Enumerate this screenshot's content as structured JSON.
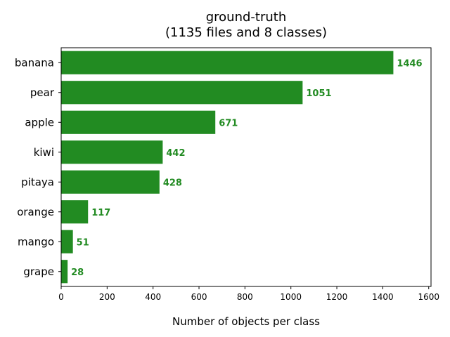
{
  "chart_data": {
    "type": "bar",
    "orientation": "horizontal",
    "title_line1": "ground-truth",
    "title_line2": "(1135 files and 8 classes)",
    "xlabel": "Number of objects per class",
    "ylabel": "",
    "categories": [
      "banana",
      "pear",
      "apple",
      "kiwi",
      "pitaya",
      "orange",
      "mango",
      "grape"
    ],
    "values": [
      1446,
      1051,
      671,
      442,
      428,
      117,
      51,
      28
    ],
    "value_labels": [
      "1446",
      "1051",
      "671",
      "442",
      "428",
      "117",
      "51",
      "28"
    ],
    "xlim": [
      0,
      1610
    ],
    "xticks": [
      0,
      200,
      400,
      600,
      800,
      1000,
      1200,
      1400,
      1600
    ],
    "xtick_labels": [
      "0",
      "200",
      "400",
      "600",
      "800",
      "1000",
      "1200",
      "1400",
      "1600"
    ],
    "grid": false,
    "bar_color": "#228b22",
    "label_color": "#228b22"
  }
}
